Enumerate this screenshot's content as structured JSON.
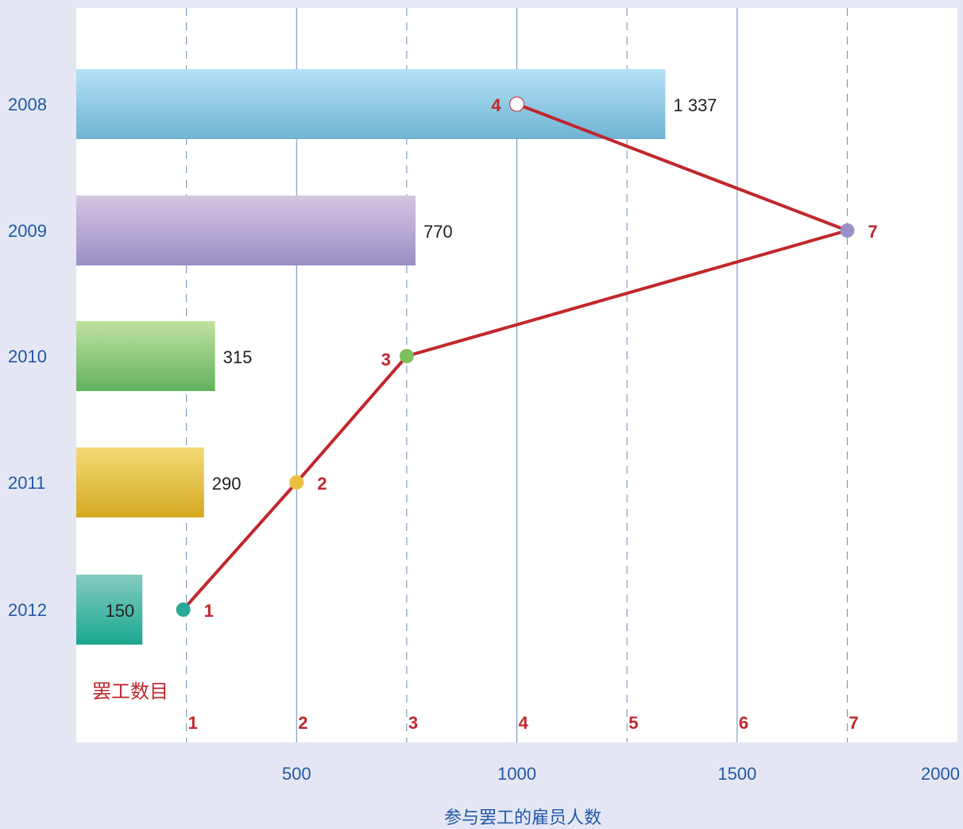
{
  "chart_data": {
    "type": "bar",
    "orientation": "horizontal",
    "categories": [
      "2008",
      "2009",
      "2010",
      "2011",
      "2012"
    ],
    "series": [
      {
        "values": [
          1337,
          770,
          315,
          290,
          150
        ],
        "value_labels": [
          "1 337",
          "770",
          "315",
          "290",
          "150"
        ]
      }
    ],
    "xlabel": "参与罢工的雇员人数",
    "xlim": [
      0,
      2000
    ],
    "xticks": [
      500,
      1000,
      1500,
      2000
    ],
    "bar_colors": [
      [
        "#b4e1f6",
        "#6fb3d3"
      ],
      [
        "#d4c5e2",
        "#9b8fc4"
      ],
      [
        "#c1e29f",
        "#62b35e"
      ],
      [
        "#f3da78",
        "#d4a91f"
      ],
      [
        "#84ccbf",
        "#1aa791"
      ]
    ],
    "overlay": {
      "type": "line",
      "name": "罢工数目",
      "values": [
        4,
        7,
        3,
        2,
        1
      ],
      "scale_ticks": [
        1,
        2,
        3,
        4,
        5,
        6,
        7
      ],
      "xlim": [
        0,
        8
      ],
      "line_color": "#c0272d",
      "point_colors": [
        "#ffffff",
        "#9a90c6",
        "#7cc15c",
        "#e8c040",
        "#2aa896"
      ]
    },
    "grid": true
  }
}
